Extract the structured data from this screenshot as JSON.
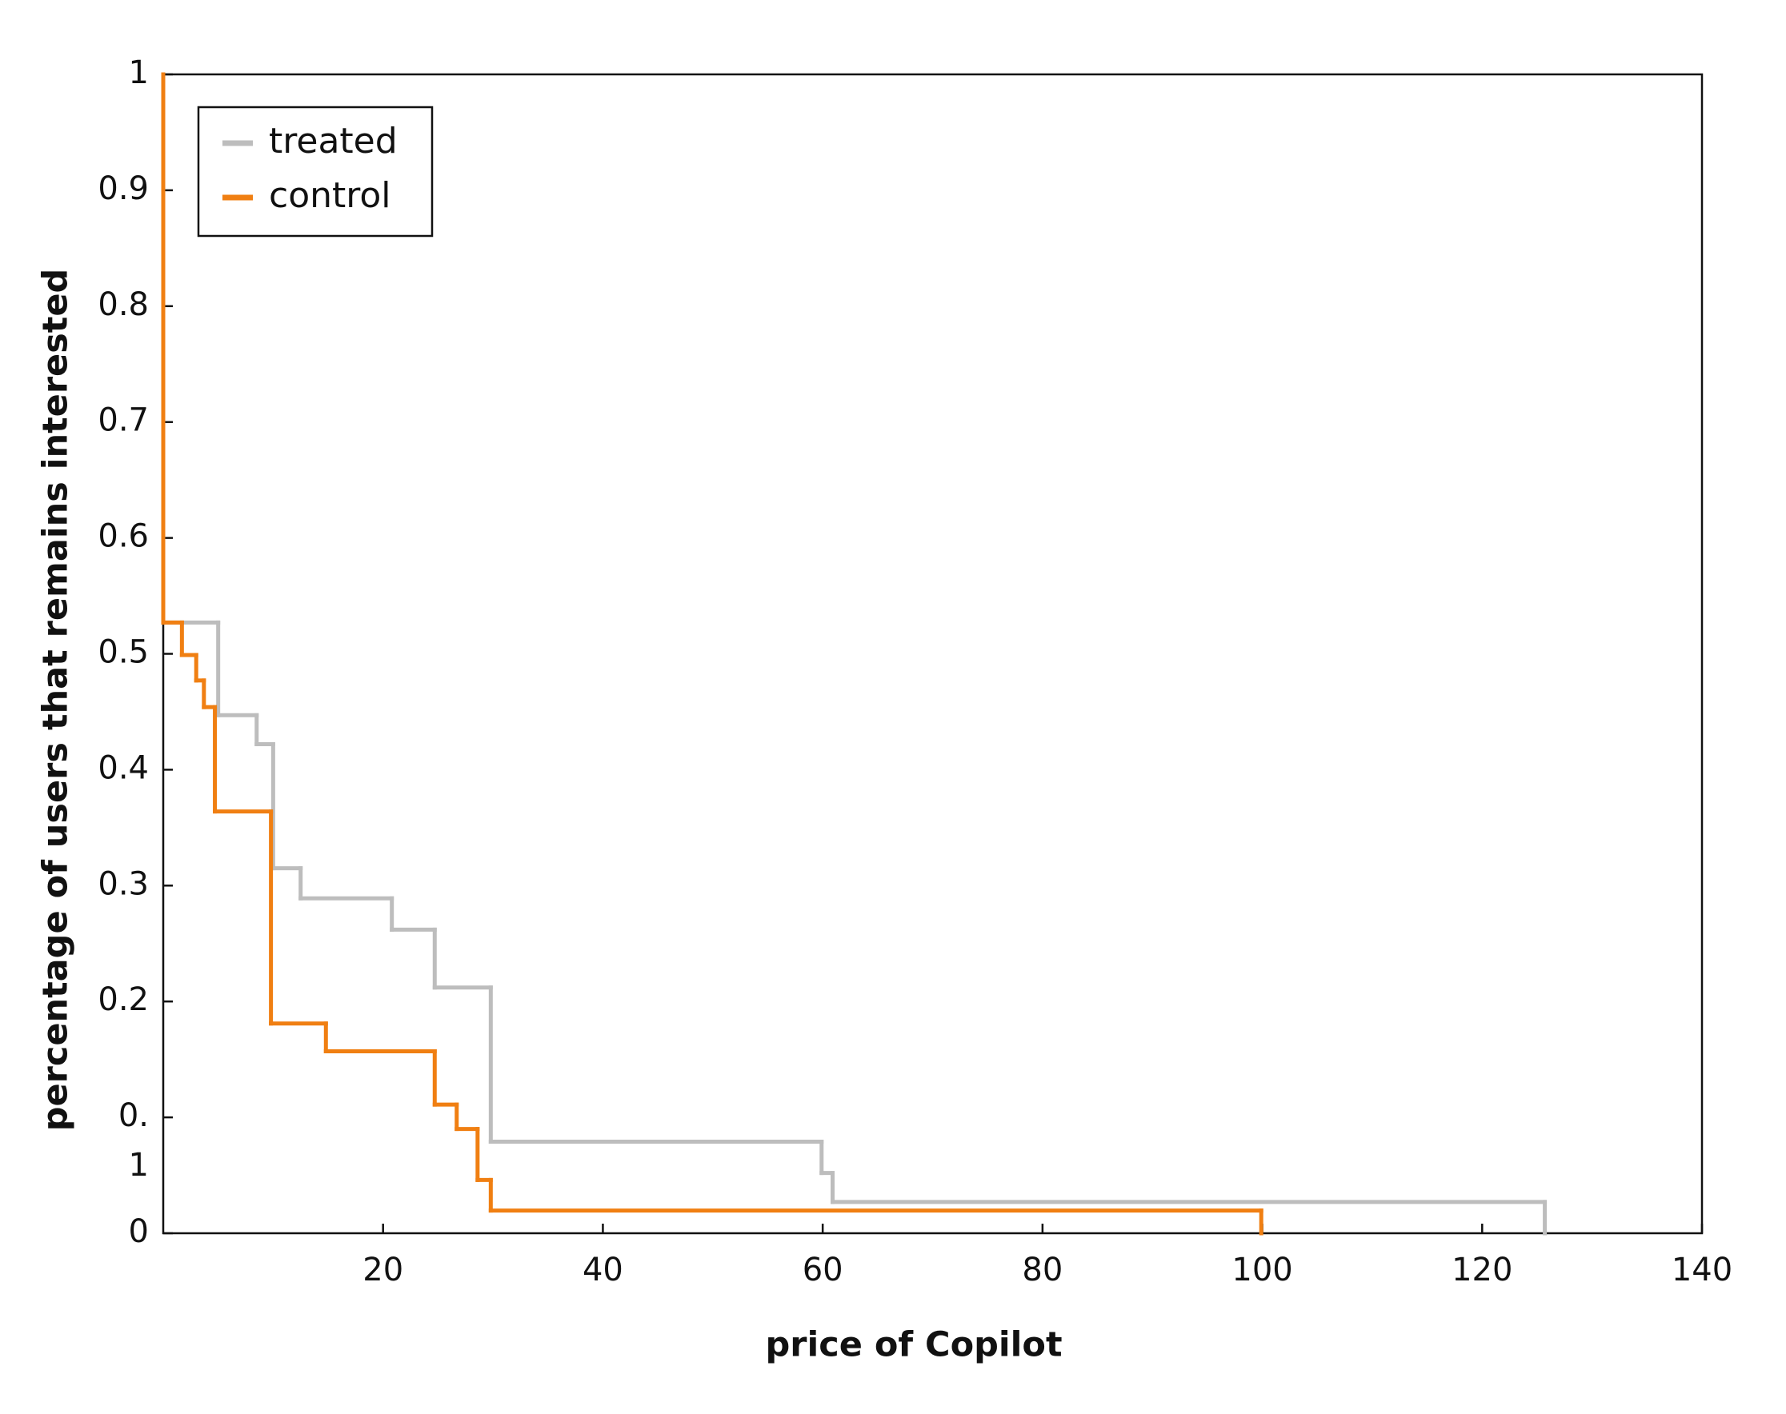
{
  "chart_data": {
    "type": "step",
    "xlabel": "price of Copilot",
    "ylabel": "percentage of users that remains interested",
    "xlim": [
      0,
      140
    ],
    "ylim": [
      0,
      1
    ],
    "xticks": [
      20,
      40,
      60,
      80,
      100,
      120,
      140
    ],
    "yticks": [
      0,
      {
        "value": 0.1,
        "label": "0.\n1"
      },
      0.2,
      0.3,
      0.4,
      0.5,
      0.6,
      0.7,
      0.8,
      0.9,
      1
    ],
    "legend": "upper left",
    "series": [
      {
        "name": "treated",
        "color": "#bdbdbd",
        "x": [
          0,
          5,
          8.5,
          10,
          12.5,
          20.8,
          24.7,
          29.8,
          59.9,
          60.9,
          125.7
        ],
        "values": [
          0.527,
          0.447,
          0.422,
          0.315,
          0.289,
          0.262,
          0.212,
          0.079,
          0.052,
          0.027,
          0
        ]
      },
      {
        "name": "control",
        "color": "#f07f12",
        "x": [
          0,
          0,
          1.7,
          3,
          3.7,
          4.7,
          9.8,
          14.8,
          24.7,
          26.7,
          28.6,
          29.8,
          99.9
        ],
        "values": [
          1,
          0.527,
          0.499,
          0.477,
          0.454,
          0.364,
          0.181,
          0.157,
          0.111,
          0.09,
          0.046,
          0.0196,
          0
        ]
      }
    ]
  }
}
